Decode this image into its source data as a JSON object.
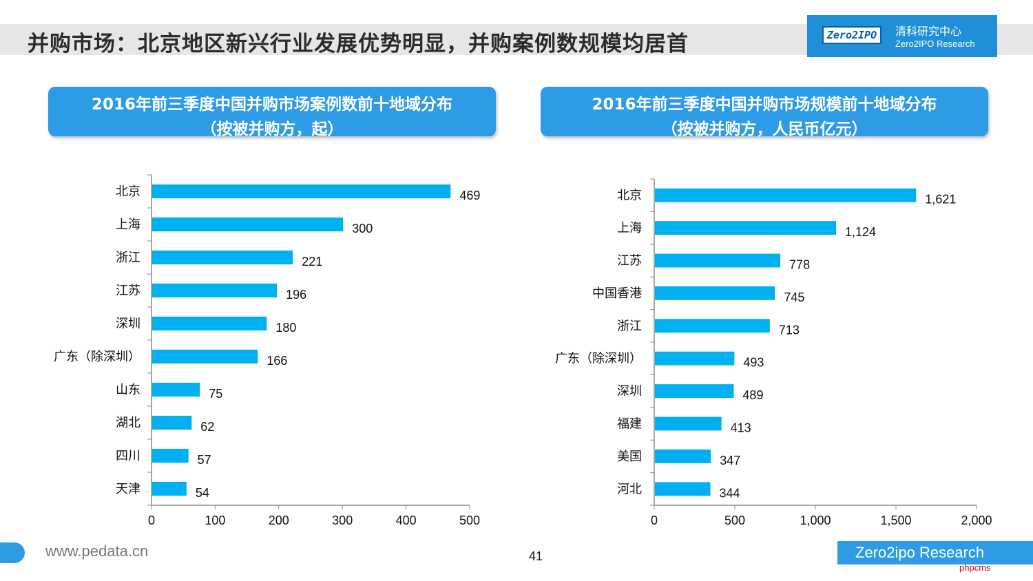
{
  "page": {
    "title": "并购市场：北京地区新兴行业发展优势明显，并购案例数规模均居首",
    "logo": {
      "mark": "Zero2IPO",
      "cn": "清科研究中心",
      "en": "Zero2IPO Research"
    },
    "footer": {
      "url": "www.pedata.cn",
      "page_number": "41",
      "brand": "Zero2ipo Research",
      "watermark": "phpcms"
    }
  },
  "charts": {
    "left": {
      "title_line1": "2016年前三季度中国并购市场案例数前十地域分布",
      "title_line2": "（按被并购方，起）"
    },
    "right": {
      "title_line1": "2016年前三季度中国并购市场规模前十地域分布",
      "title_line2": "（按被并购方，人民币亿元）"
    }
  },
  "chart_data": [
    {
      "type": "bar",
      "orientation": "horizontal",
      "title": "2016年前三季度中国并购市场案例数前十地域分布（按被并购方，起）",
      "categories": [
        "北京",
        "上海",
        "浙江",
        "江苏",
        "深圳",
        "广东（除深圳）",
        "山东",
        "湖北",
        "四川",
        "天津"
      ],
      "values": [
        469,
        300,
        221,
        196,
        180,
        166,
        75,
        62,
        57,
        54
      ],
      "value_labels": [
        "469",
        "300",
        "221",
        "196",
        "180",
        "166",
        "75",
        "62",
        "57",
        "54"
      ],
      "xlim": [
        0,
        500
      ],
      "xticks": [
        "0",
        "100",
        "200",
        "300",
        "400",
        "500"
      ],
      "tick_values": [
        0,
        100,
        200,
        300,
        400,
        500
      ],
      "color": "#00b0f0",
      "grid": false
    },
    {
      "type": "bar",
      "orientation": "horizontal",
      "title": "2016年前三季度中国并购市场规模前十地域分布（按被并购方，人民币亿元）",
      "categories": [
        "北京",
        "上海",
        "江苏",
        "中国香港",
        "浙江",
        "广东（除深圳）",
        "深圳",
        "福建",
        "美国",
        "河北"
      ],
      "values": [
        1621,
        1124,
        778,
        745,
        713,
        493,
        489,
        413,
        347,
        344
      ],
      "value_labels": [
        "1,621",
        "1,124",
        "778",
        "745",
        "713",
        "493",
        "489",
        "413",
        "347",
        "344"
      ],
      "xlim": [
        0,
        2000
      ],
      "xticks": [
        "0",
        "500",
        "1,000",
        "1,500",
        "2,000"
      ],
      "tick_values": [
        0,
        500,
        1000,
        1500,
        2000
      ],
      "color": "#00b0f0",
      "grid": false
    }
  ]
}
